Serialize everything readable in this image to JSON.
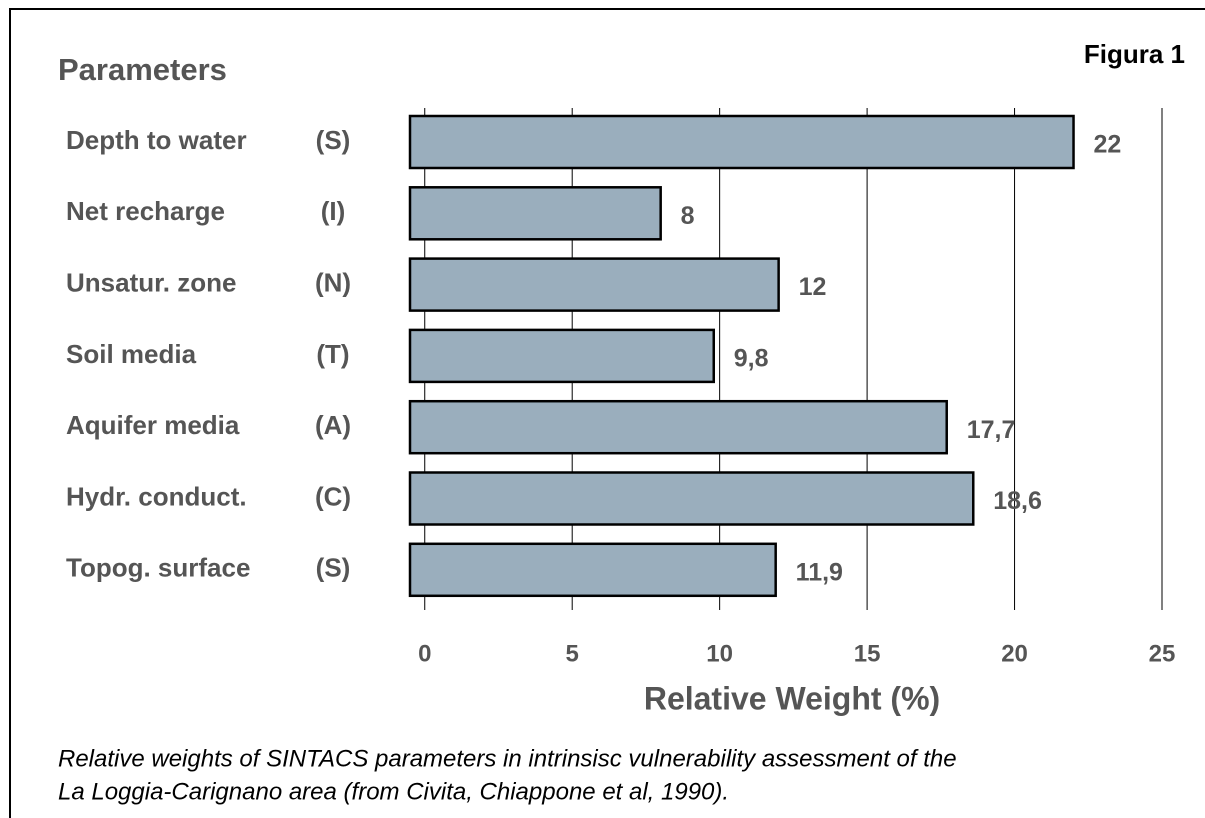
{
  "chart_data": {
    "type": "bar",
    "orientation": "horizontal",
    "title": "Parameters",
    "figure_label": "Figura 1",
    "categories": [
      "Depth to water",
      "Net recharge",
      "Unsatur. zone",
      "Soil  media",
      "Aquifer media",
      "Hydr. conduct.",
      "Topog. surface"
    ],
    "codes": [
      "(S)",
      "(I)",
      "(N)",
      "(T)",
      "(A)",
      "(C)",
      "(S)"
    ],
    "values": [
      22,
      8,
      12,
      9.8,
      17.7,
      18.6,
      11.9
    ],
    "value_labels": [
      "22",
      "8",
      "12",
      "9,8",
      "17,7",
      "18,6",
      "11,9"
    ],
    "color": "#9aaebd",
    "xlim": [
      -0.5,
      25
    ],
    "xticks": [
      0,
      5,
      10,
      15,
      20,
      25
    ],
    "grid": true,
    "xlabel": "Relative Weight (%)",
    "caption": [
      "Relative weights of SINTACS parameters in intrinsisc vulnerability assessment of the",
      "La Loggia-Carignano area (from Civita, Chiappone et al, 1990)."
    ]
  }
}
